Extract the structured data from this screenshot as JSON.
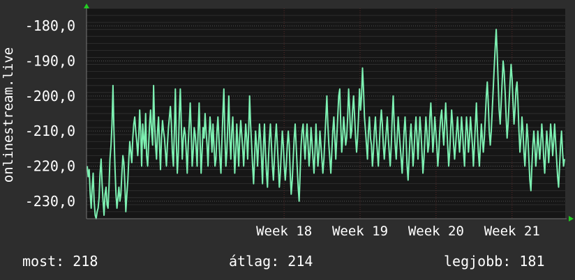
{
  "chart_data": {
    "type": "line",
    "ylabel": "onlinestream.live",
    "ylim": [
      -235,
      -175
    ],
    "yticks": [
      {
        "value": -180,
        "label": "-180,0"
      },
      {
        "value": -190,
        "label": "-190,0"
      },
      {
        "value": -200,
        "label": "-200,0"
      },
      {
        "value": -210,
        "label": "-210,0"
      },
      {
        "value": -220,
        "label": "-220,0"
      },
      {
        "value": -230,
        "label": "-230,0"
      }
    ],
    "xlim": [
      15.4,
      21.7
    ],
    "xticks": [
      {
        "value": 18,
        "label": "Week 18"
      },
      {
        "value": 19,
        "label": "Week 19"
      },
      {
        "value": 20,
        "label": "Week 20"
      },
      {
        "value": 21,
        "label": "Week 21"
      }
    ],
    "grid": true,
    "colors": {
      "line": "#7df0b2",
      "background": "#2d2d2d",
      "plot_background": "#161616",
      "grid": "#555555",
      "axis_arrow": "#22cc22"
    },
    "series": [
      {
        "values": [
          -220,
          -223,
          -221,
          -228,
          -232,
          -226,
          -222,
          -230,
          -234,
          -235,
          -233,
          -232,
          -229,
          -222,
          -218,
          -225,
          -230,
          -234,
          -228,
          -226,
          -231,
          -232,
          -226,
          -218,
          -214,
          -208,
          -197,
          -210,
          -220,
          -228,
          -232,
          -229,
          -226,
          -230,
          -228,
          -222,
          -217,
          -219,
          -225,
          -233,
          -228,
          -224,
          -218,
          -213,
          -216,
          -219,
          -212,
          -208,
          -206,
          -210,
          -213,
          -217,
          -212,
          -204,
          -210,
          -220,
          -208,
          -212,
          -215,
          -205,
          -217,
          -220,
          -214,
          -208,
          -204,
          -210,
          -214,
          -197,
          -208,
          -214,
          -218,
          -210,
          -206,
          -214,
          -221,
          -212,
          -207,
          -210,
          -212,
          -216,
          -220,
          -214,
          -209,
          -206,
          -203,
          -208,
          -216,
          -220,
          -210,
          -198,
          -213,
          -222,
          -216,
          -205,
          -198,
          -208,
          -218,
          -212,
          -209,
          -211,
          -216,
          -222,
          -214,
          -208,
          -202,
          -210,
          -220,
          -216,
          -209,
          -211,
          -215,
          -220,
          -210,
          -202,
          -213,
          -222,
          -216,
          -209,
          -212,
          -205,
          -210,
          -214,
          -220,
          -212,
          -206,
          -210,
          -216,
          -208,
          -214,
          -220,
          -218,
          -210,
          -206,
          -212,
          -218,
          -222,
          -213,
          -205,
          -198,
          -212,
          -220,
          -216,
          -208,
          -200,
          -212,
          -218,
          -210,
          -206,
          -214,
          -222,
          -216,
          -208,
          -214,
          -220,
          -212,
          -207,
          -211,
          -215,
          -220,
          -214,
          -208,
          -212,
          -218,
          -210,
          -200,
          -208,
          -214,
          -220,
          -225,
          -218,
          -210,
          -214,
          -220,
          -214,
          -208,
          -212,
          -218,
          -225,
          -214,
          -208,
          -216,
          -222,
          -226,
          -218,
          -212,
          -208,
          -214,
          -220,
          -224,
          -218,
          -212,
          -208,
          -214,
          -220,
          -226,
          -222,
          -216,
          -210,
          -214,
          -220,
          -224,
          -220,
          -214,
          -210,
          -214,
          -222,
          -228,
          -224,
          -218,
          -212,
          -208,
          -214,
          -220,
          -226,
          -230,
          -222,
          -214,
          -210,
          -208,
          -214,
          -218,
          -212,
          -208,
          -214,
          -220,
          -216,
          -209,
          -213,
          -218,
          -222,
          -216,
          -208,
          -214,
          -220,
          -216,
          -210,
          -214,
          -218,
          -222,
          -218,
          -212,
          -206,
          -200,
          -208,
          -214,
          -218,
          -222,
          -216,
          -210,
          -206,
          -212,
          -218,
          -212,
          -206,
          -200,
          -198,
          -208,
          -216,
          -212,
          -206,
          -210,
          -214,
          -212,
          -206,
          -198,
          -204,
          -212,
          -210,
          -204,
          -200,
          -206,
          -212,
          -216,
          -212,
          -206,
          -198,
          -204,
          -200,
          -192,
          -198,
          -206,
          -210,
          -214,
          -218,
          -210,
          -206,
          -212,
          -214,
          -220,
          -216,
          -210,
          -206,
          -212,
          -216,
          -220,
          -214,
          -208,
          -204,
          -208,
          -214,
          -218,
          -214,
          -210,
          -206,
          -212,
          -216,
          -220,
          -214,
          -206,
          -200,
          -208,
          -214,
          -218,
          -212,
          -206,
          -210,
          -214,
          -218,
          -222,
          -216,
          -210,
          -206,
          -212,
          -220,
          -224,
          -218,
          -212,
          -208,
          -214,
          -220,
          -216,
          -210,
          -206,
          -212,
          -218,
          -212,
          -206,
          -210,
          -216,
          -222,
          -218,
          -212,
          -206,
          -210,
          -216,
          -214,
          -206,
          -202,
          -208,
          -216,
          -212,
          -206,
          -210,
          -214,
          -220,
          -216,
          -210,
          -206,
          -204,
          -210,
          -214,
          -208,
          -202,
          -208,
          -214,
          -220,
          -216,
          -210,
          -204,
          -208,
          -214,
          -218,
          -214,
          -210,
          -206,
          -212,
          -216,
          -212,
          -206,
          -210,
          -216,
          -220,
          -212,
          -206,
          -210,
          -216,
          -212,
          -206,
          -210,
          -214,
          -220,
          -214,
          -208,
          -202,
          -210,
          -216,
          -220,
          -214,
          -208,
          -212,
          -216,
          -212,
          -206,
          -200,
          -196,
          -202,
          -210,
          -214,
          -210,
          -204,
          -198,
          -192,
          -186,
          -181,
          -188,
          -196,
          -204,
          -208,
          -202,
          -196,
          -190,
          -193,
          -199,
          -206,
          -212,
          -208,
          -202,
          -196,
          -191,
          -195,
          -202,
          -208,
          -204,
          -198,
          -196,
          -202,
          -210,
          -216,
          -212,
          -206,
          -210,
          -216,
          -220,
          -214,
          -208,
          -212,
          -218,
          -224,
          -227,
          -220,
          -214,
          -210,
          -214,
          -220,
          -216,
          -210,
          -214,
          -218,
          -214,
          -208,
          -212,
          -218,
          -222,
          -216,
          -210,
          -214,
          -219,
          -214,
          -208,
          -212,
          -217,
          -213,
          -208,
          -213,
          -218,
          -223,
          -226,
          -220,
          -214,
          -210,
          -216,
          -220,
          -218
        ]
      }
    ],
    "stats": [
      {
        "label": "most:",
        "value": "218"
      },
      {
        "label": "átlag:",
        "value": "214"
      },
      {
        "label": "legjobb:",
        "value": "181"
      }
    ]
  }
}
